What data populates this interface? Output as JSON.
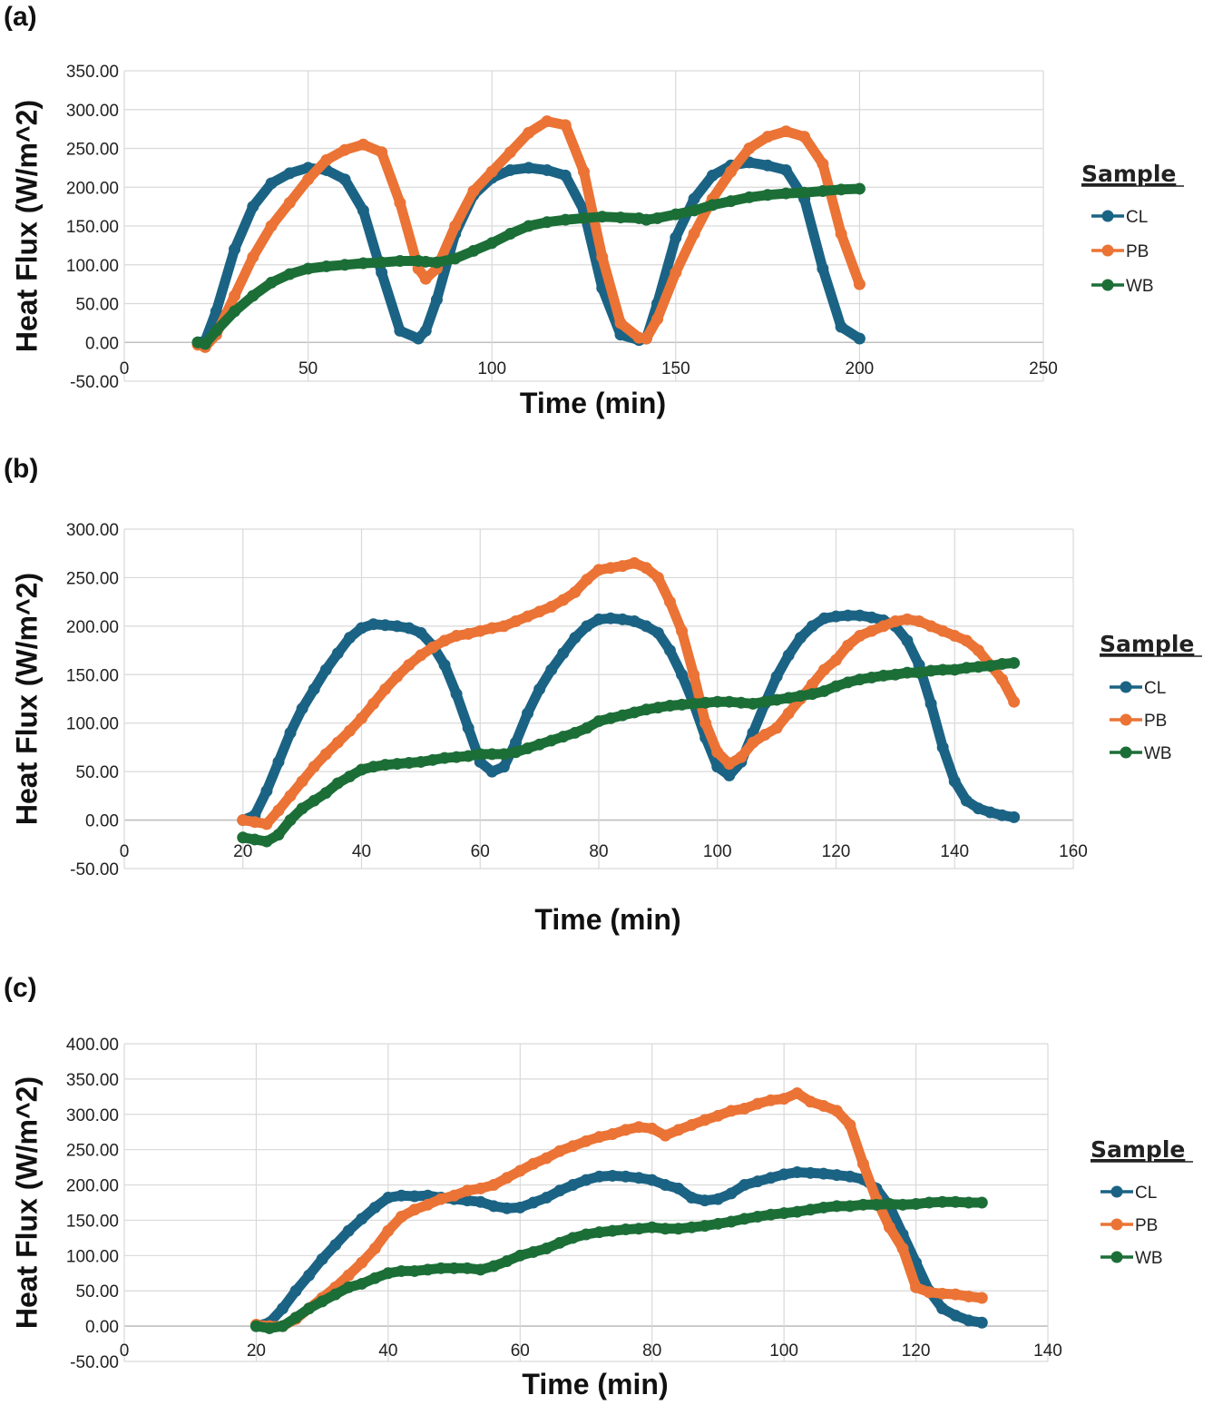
{
  "figure": {
    "panels": [
      "(a)",
      "(b)",
      "(c)"
    ]
  },
  "chart_data": [
    {
      "type": "line",
      "panel_label": "(a)",
      "title": "",
      "xlabel": "Time (min)",
      "ylabel": "Heat Flux (W/m^2)",
      "xlim": [
        0,
        250
      ],
      "ylim": [
        -50,
        350
      ],
      "xticks": [
        "0",
        "50",
        "100",
        "150",
        "200",
        "250"
      ],
      "yticks": [
        "-50.00",
        "0.00",
        "50.00",
        "100.00",
        "150.00",
        "200.00",
        "250.00",
        "300.00",
        "350.00"
      ],
      "grid": true,
      "legend": {
        "title": "Sample",
        "position": "right",
        "entries": [
          "CL",
          "PB",
          "WB"
        ]
      },
      "x": [
        20,
        22,
        25,
        30,
        35,
        40,
        45,
        50,
        55,
        60,
        65,
        70,
        75,
        80,
        82,
        85,
        90,
        95,
        100,
        105,
        110,
        115,
        120,
        125,
        130,
        135,
        140,
        142,
        145,
        150,
        155,
        160,
        165,
        170,
        175,
        180,
        185,
        190,
        195,
        200
      ],
      "series": [
        {
          "name": "CL",
          "color": "#1b6384",
          "values": [
            0,
            2,
            40,
            120,
            175,
            205,
            218,
            225,
            222,
            210,
            170,
            90,
            15,
            5,
            15,
            55,
            140,
            190,
            212,
            222,
            225,
            222,
            215,
            170,
            70,
            10,
            3,
            5,
            50,
            135,
            185,
            215,
            228,
            232,
            228,
            222,
            185,
            95,
            20,
            5
          ]
        },
        {
          "name": "PB",
          "color": "#eb7335",
          "values": [
            -3,
            -6,
            10,
            60,
            110,
            150,
            180,
            210,
            235,
            248,
            255,
            245,
            180,
            95,
            82,
            95,
            150,
            195,
            220,
            245,
            270,
            285,
            280,
            220,
            110,
            25,
            6,
            5,
            30,
            90,
            140,
            185,
            220,
            250,
            265,
            272,
            265,
            230,
            140,
            75
          ]
        },
        {
          "name": "WB",
          "color": "#1c6e37",
          "values": [
            0,
            -2,
            15,
            40,
            60,
            77,
            88,
            95,
            98,
            100,
            102,
            103,
            105,
            105,
            104,
            103,
            108,
            118,
            128,
            140,
            150,
            155,
            158,
            160,
            162,
            161,
            160,
            158,
            160,
            165,
            170,
            177,
            182,
            187,
            190,
            192,
            193,
            195,
            197,
            198
          ]
        }
      ]
    },
    {
      "type": "line",
      "panel_label": "(b)",
      "title": "",
      "xlabel": "Time (min)",
      "ylabel": "Heat Flux (W/m^2)",
      "xlim": [
        0,
        160
      ],
      "ylim": [
        -50,
        300
      ],
      "xticks": [
        "0",
        "20",
        "40",
        "60",
        "80",
        "100",
        "120",
        "140",
        "160"
      ],
      "yticks": [
        "-50.00",
        "0.00",
        "50.00",
        "100.00",
        "150.00",
        "200.00",
        "250.00",
        "300.00"
      ],
      "grid": true,
      "legend": {
        "title": "Sample",
        "position": "right",
        "entries": [
          "CL",
          "PB",
          "WB"
        ]
      },
      "x": [
        20,
        22,
        24,
        26,
        28,
        30,
        32,
        34,
        36,
        38,
        40,
        42,
        44,
        46,
        48,
        50,
        52,
        54,
        56,
        58,
        60,
        62,
        64,
        66,
        68,
        70,
        72,
        74,
        76,
        78,
        80,
        82,
        84,
        86,
        88,
        90,
        92,
        94,
        96,
        98,
        100,
        102,
        104,
        106,
        108,
        110,
        112,
        114,
        116,
        118,
        120,
        122,
        124,
        126,
        128,
        130,
        132,
        134,
        136,
        138,
        140,
        142,
        144,
        146,
        148,
        150
      ],
      "series": [
        {
          "name": "CL",
          "color": "#1b6384",
          "values": [
            0,
            5,
            30,
            60,
            90,
            115,
            135,
            155,
            172,
            188,
            198,
            202,
            201,
            200,
            198,
            193,
            180,
            160,
            130,
            95,
            60,
            50,
            55,
            80,
            110,
            135,
            155,
            172,
            188,
            200,
            207,
            208,
            207,
            205,
            200,
            193,
            175,
            150,
            120,
            85,
            55,
            46,
            60,
            90,
            120,
            148,
            170,
            188,
            200,
            208,
            210,
            211,
            211,
            209,
            206,
            200,
            185,
            160,
            120,
            75,
            40,
            20,
            12,
            8,
            5,
            3
          ]
        },
        {
          "name": "PB",
          "color": "#eb7335",
          "values": [
            0,
            -2,
            -4,
            10,
            25,
            40,
            55,
            68,
            80,
            92,
            105,
            120,
            135,
            148,
            160,
            170,
            178,
            185,
            190,
            192,
            195,
            198,
            200,
            205,
            210,
            215,
            220,
            227,
            235,
            248,
            258,
            260,
            262,
            265,
            260,
            250,
            225,
            195,
            150,
            100,
            70,
            58,
            65,
            80,
            88,
            95,
            110,
            125,
            140,
            155,
            165,
            180,
            190,
            195,
            200,
            205,
            207,
            205,
            200,
            195,
            190,
            185,
            175,
            160,
            145,
            122
          ]
        },
        {
          "name": "WB",
          "color": "#1c6e37",
          "values": [
            -18,
            -20,
            -22,
            -15,
            0,
            12,
            20,
            28,
            38,
            45,
            52,
            55,
            57,
            58,
            59,
            60,
            62,
            64,
            65,
            66,
            68,
            68,
            68,
            70,
            74,
            78,
            82,
            86,
            90,
            95,
            102,
            105,
            108,
            111,
            114,
            116,
            118,
            119,
            120,
            121,
            122,
            122,
            121,
            120,
            122,
            124,
            126,
            128,
            130,
            133,
            138,
            142,
            145,
            147,
            149,
            150,
            152,
            152,
            154,
            155,
            155,
            157,
            158,
            159,
            161,
            162
          ]
        }
      ]
    },
    {
      "type": "line",
      "panel_label": "(c)",
      "title": "",
      "xlabel": "Time (min)",
      "ylabel": "Heat Flux (W/m^2)",
      "xlim": [
        0,
        140
      ],
      "ylim": [
        -50,
        400
      ],
      "xticks": [
        "0",
        "20",
        "40",
        "60",
        "80",
        "100",
        "120",
        "140"
      ],
      "yticks": [
        "-50.00",
        "0.00",
        "50.00",
        "100.00",
        "150.00",
        "200.00",
        "250.00",
        "300.00",
        "350.00",
        "400.00"
      ],
      "grid": true,
      "legend": {
        "title": "Sample",
        "position": "right",
        "entries": [
          "CL",
          "PB",
          "WB"
        ]
      },
      "x": [
        20,
        22,
        24,
        26,
        28,
        30,
        32,
        34,
        36,
        38,
        40,
        42,
        44,
        46,
        48,
        50,
        52,
        54,
        56,
        58,
        60,
        62,
        64,
        66,
        68,
        70,
        72,
        74,
        76,
        78,
        80,
        82,
        84,
        86,
        88,
        90,
        92,
        94,
        96,
        98,
        100,
        102,
        104,
        106,
        108,
        110,
        112,
        114,
        116,
        118,
        120,
        122,
        124,
        126,
        128,
        130
      ],
      "series": [
        {
          "name": "CL",
          "color": "#1b6384",
          "values": [
            0,
            5,
            25,
            50,
            72,
            95,
            115,
            135,
            152,
            168,
            182,
            185,
            184,
            185,
            182,
            180,
            178,
            176,
            170,
            167,
            168,
            175,
            182,
            192,
            200,
            207,
            212,
            213,
            212,
            210,
            207,
            200,
            195,
            182,
            178,
            180,
            188,
            200,
            205,
            210,
            215,
            218,
            217,
            216,
            214,
            212,
            208,
            195,
            170,
            130,
            90,
            50,
            25,
            15,
            8,
            5
          ]
        },
        {
          "name": "PB",
          "color": "#eb7335",
          "values": [
            2,
            0,
            0,
            10,
            25,
            40,
            55,
            72,
            90,
            110,
            135,
            155,
            165,
            172,
            180,
            185,
            192,
            195,
            200,
            210,
            220,
            230,
            238,
            248,
            255,
            262,
            268,
            272,
            278,
            282,
            280,
            270,
            278,
            285,
            292,
            298,
            305,
            308,
            315,
            320,
            322,
            330,
            318,
            312,
            305,
            285,
            230,
            180,
            140,
            110,
            55,
            48,
            46,
            45,
            42,
            40
          ]
        },
        {
          "name": "WB",
          "color": "#1c6e37",
          "values": [
            0,
            -3,
            0,
            12,
            25,
            35,
            45,
            55,
            60,
            68,
            75,
            78,
            78,
            80,
            82,
            82,
            82,
            80,
            85,
            92,
            100,
            105,
            110,
            118,
            125,
            130,
            133,
            135,
            137,
            138,
            140,
            138,
            138,
            140,
            142,
            145,
            148,
            152,
            155,
            158,
            160,
            162,
            165,
            168,
            170,
            170,
            172,
            172,
            173,
            172,
            173,
            175,
            176,
            176,
            175,
            175
          ]
        }
      ]
    }
  ]
}
